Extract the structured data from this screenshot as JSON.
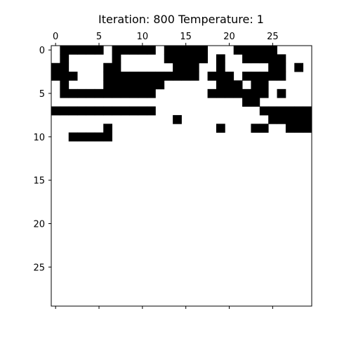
{
  "chart_data": {
    "type": "heatmap",
    "title": "Iteration: 800 Temperature: 1",
    "xlabel": "",
    "ylabel": "",
    "x_ticks": [
      "0",
      "5",
      "10",
      "15",
      "20",
      "25"
    ],
    "y_ticks": [
      "0",
      "5",
      "10",
      "15",
      "20",
      "25"
    ],
    "rows": 30,
    "cols": 30,
    "x_axis_position": "top-and-bottom",
    "grid": false,
    "colors": {
      "one": "#000000",
      "zero": "#ffffff",
      "axes": "#000000"
    },
    "grid_data": [
      "011111011111011111000111110000",
      "010000010000011111010011111000",
      "110000110000001110010000011010",
      "111000111111111110111011111000",
      "010000111111100000011101100000",
      "011111111111000000111111101000",
      "000000000000000000000011000000",
      "111111111111000000000000111111",
      "000000000000001000000000011111",
      "000000100000000000010001100111",
      "001111100000000000000000000000",
      "000000000000000000000000000000",
      "000000000000000000000000000000",
      "000000000000000000000000000000",
      "000000000000000000000000000000",
      "000000000000000000000000000000",
      "000000000000000000000000000000",
      "000000000000000000000000000000",
      "000000000000000000000000000000",
      "000000000000000000000000000000",
      "000000000000000000000000000000",
      "000000000000000000000000000000",
      "000000000000000000000000000000",
      "000000000000000000000000000000",
      "000000000000000000000000000000",
      "000000000000000000000000000000",
      "000000000000000000000000000000",
      "000000000000000000000000000000",
      "000000000000000000000000000000",
      "000000000000000000000000000000"
    ]
  }
}
